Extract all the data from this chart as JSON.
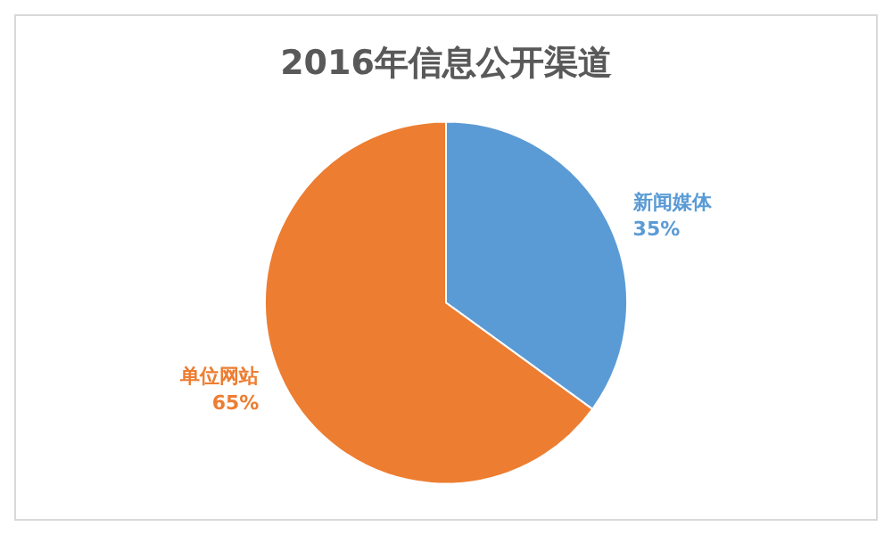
{
  "chart_data": {
    "type": "pie",
    "title": "2016年信息公开渠道",
    "categories": [
      "新闻媒体",
      "单位网站"
    ],
    "values": [
      35,
      65
    ],
    "colors": [
      "#5b9bd5",
      "#ed7d31"
    ],
    "value_labels": [
      "35%",
      "65%"
    ],
    "legend": false
  }
}
